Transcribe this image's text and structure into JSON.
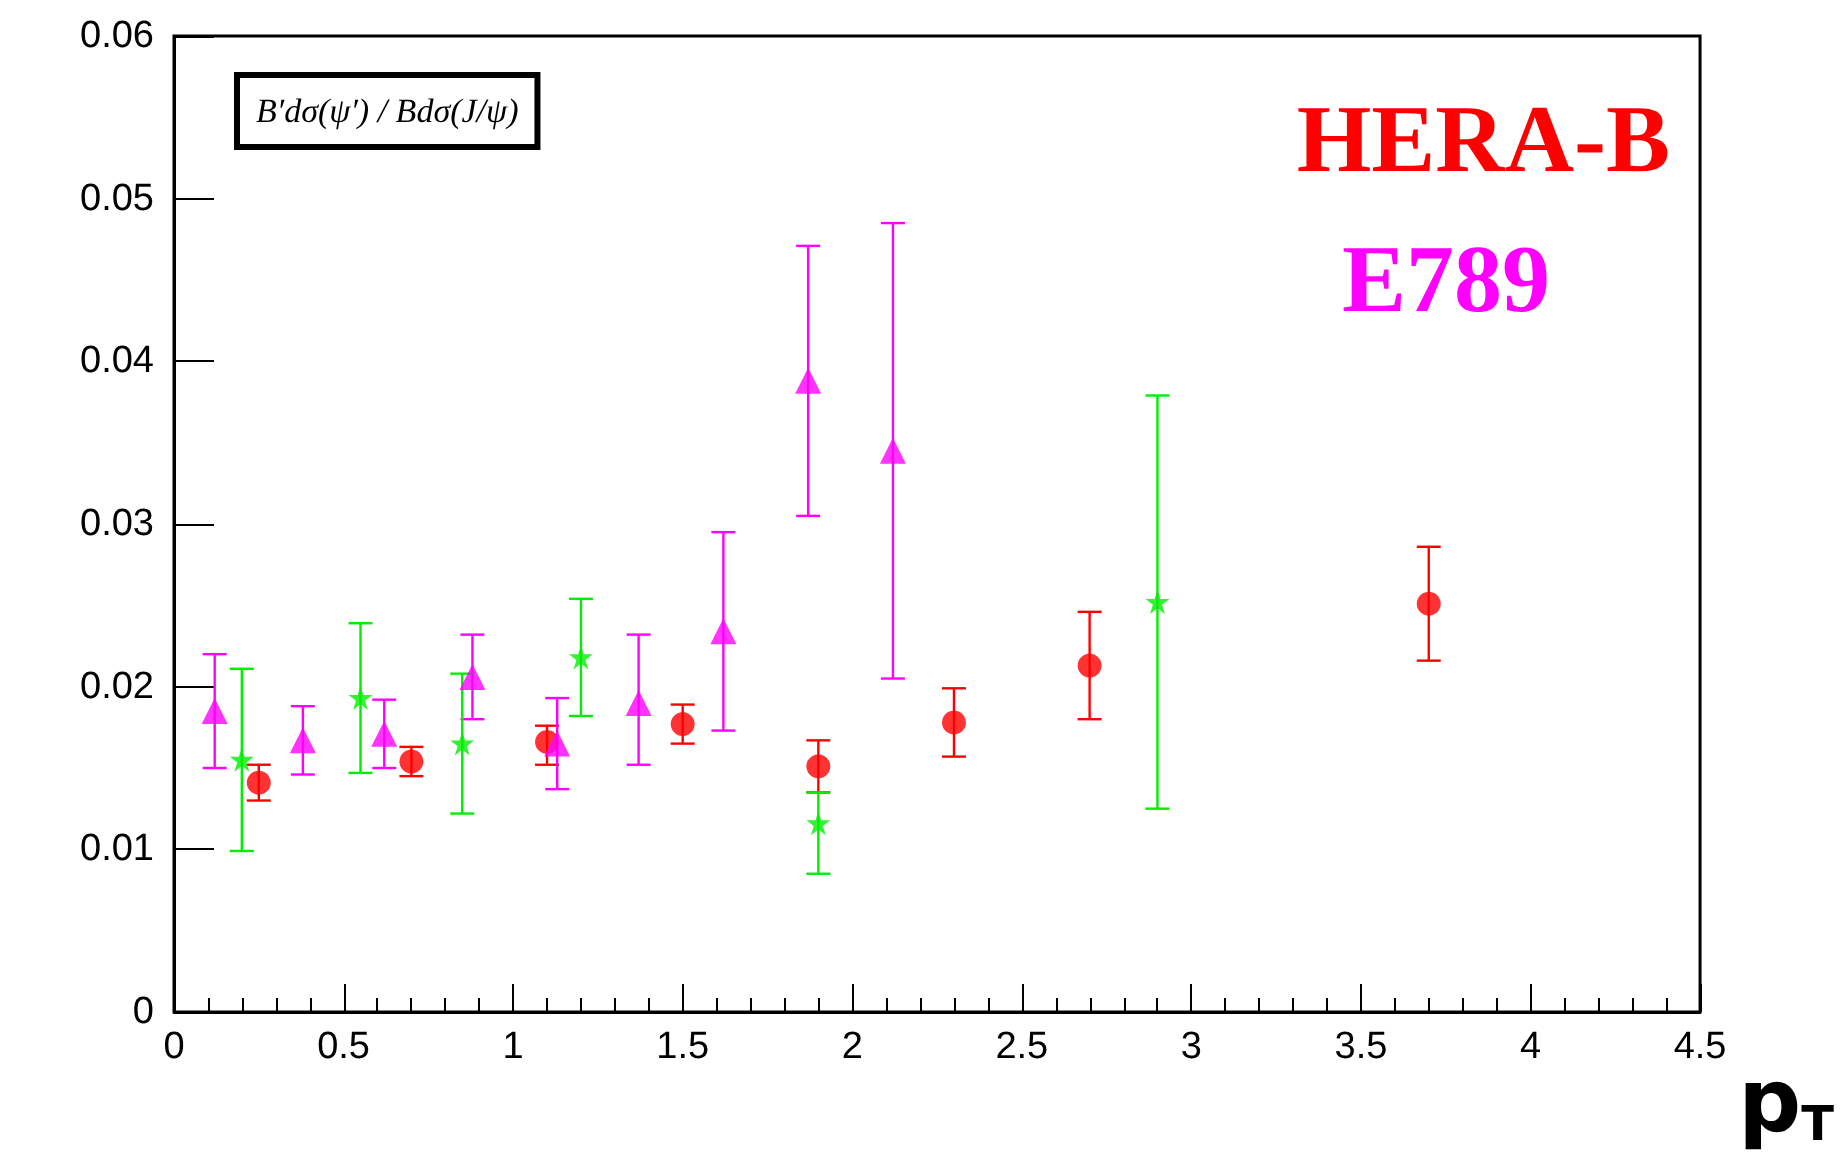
{
  "chart_data": {
    "type": "scatter",
    "xlabel": "p$_{T}$",
    "annotations": [
      "B′dσ(ψ′) / Bdσ(J/ψ)"
    ],
    "xlim": [
      0,
      4.5
    ],
    "xticks": [
      0,
      0.5,
      1,
      1.5,
      2,
      2.5,
      3,
      3.5,
      4,
      4.5
    ],
    "ylim": [
      0,
      0.06
    ],
    "yticks": [
      0,
      0.01,
      0.02,
      0.03,
      0.04,
      0.05,
      0.06
    ],
    "grid": false,
    "series": [
      {
        "name": "HERA-B",
        "color": "#ff0000",
        "marker": "circle",
        "x": [
          0.25,
          0.7,
          1.1,
          1.5,
          1.9,
          2.3,
          2.7,
          3.7
        ],
        "values": [
          0.0141,
          0.0154,
          0.0166,
          0.0177,
          0.0151,
          0.0178,
          0.0213,
          0.0251
        ],
        "errors": [
          0.0011,
          0.0009,
          [
            0.0152,
            0.0176
          ],
          0.0012,
          0.0016,
          0.0021,
          0.0033,
          0.0035
        ]
      },
      {
        "name": "E789",
        "color": "#ff00ff",
        "marker": "triangle",
        "x": [
          0.12,
          0.38,
          0.62,
          0.88,
          1.13,
          1.37,
          1.62,
          1.87,
          2.12
        ],
        "values": [
          0.0185,
          0.0167,
          0.0171,
          0.0206,
          0.0165,
          0.019,
          0.0234,
          0.0388,
          0.0345
        ],
        "errors": [
          0.0035,
          0.0021,
          0.0021,
          0.0026,
          0.0028,
          [
            0.0152,
            0.0232
          ],
          0.0061,
          0.0083,
          0.014
        ]
      },
      {
        "color": "#00ee00",
        "marker": "star",
        "x": [
          0.2,
          0.55,
          0.85,
          1.2,
          1.9,
          2.9
        ],
        "values": [
          0.0155,
          0.0193,
          0.0165,
          0.0218,
          0.0116,
          0.0252
        ],
        "errors": [
          0.0056,
          0.0046,
          0.0043,
          0.0036,
          [
            0.0085,
            0.0135
          ],
          0.0127
        ]
      }
    ]
  }
}
